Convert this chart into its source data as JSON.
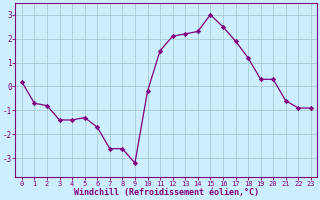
{
  "x": [
    0,
    1,
    2,
    3,
    4,
    5,
    6,
    7,
    8,
    9,
    10,
    11,
    12,
    13,
    14,
    15,
    16,
    17,
    18,
    19,
    20,
    21,
    22,
    23
  ],
  "y": [
    0.2,
    -0.7,
    -0.8,
    -1.4,
    -1.4,
    -1.3,
    -1.7,
    -2.6,
    -2.6,
    -3.2,
    -0.2,
    1.5,
    2.1,
    2.2,
    2.3,
    3.0,
    2.5,
    1.9,
    1.2,
    0.3,
    0.3,
    -0.6,
    -0.9,
    -0.9
  ],
  "line_color": "#800080",
  "marker": "D",
  "markersize": 2.2,
  "linewidth": 0.9,
  "xlabel": "Windchill (Refroidissement éolien,°C)",
  "xlabel_fontsize": 6.0,
  "bg_color": "#cceeff",
  "grid_color": "#aacccc",
  "axis_color": "#800080",
  "tick_color": "#800080",
  "ylim": [
    -3.8,
    3.5
  ],
  "yticks": [
    -3,
    -2,
    -1,
    0,
    1,
    2,
    3
  ],
  "xticks": [
    0,
    1,
    2,
    3,
    4,
    5,
    6,
    7,
    8,
    9,
    10,
    11,
    12,
    13,
    14,
    15,
    16,
    17,
    18,
    19,
    20,
    21,
    22,
    23
  ]
}
